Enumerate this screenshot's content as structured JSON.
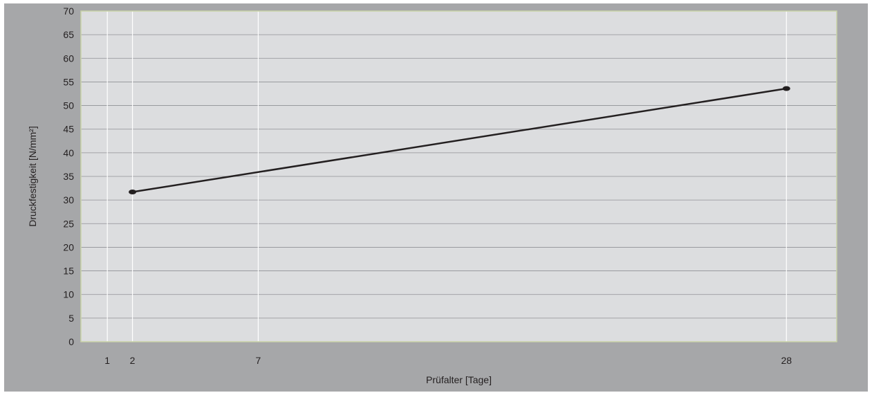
{
  "chart_data": {
    "type": "line",
    "title": "",
    "xlabel": "Prüfalter [Tage]",
    "ylabel": "Druckfestigkeit [N/mm²]",
    "x_ticks": [
      1,
      2,
      7,
      28
    ],
    "y_ticks": [
      0,
      5,
      10,
      15,
      20,
      25,
      30,
      35,
      40,
      45,
      50,
      55,
      60,
      65,
      70
    ],
    "xlim": [
      -0.05,
      30.0
    ],
    "ylim": [
      0,
      70
    ],
    "grid": true,
    "series": [
      {
        "x": [
          2,
          28
        ],
        "y": [
          31.7,
          53.6
        ]
      }
    ],
    "colors": {
      "frame": "#a6a7a9",
      "plot_background": "#dcdddf",
      "plot_border": "#c9d4a7",
      "horizontal_grid": "#8f9094",
      "vertical_grid": "#ffffff",
      "line": "#231f20"
    }
  }
}
